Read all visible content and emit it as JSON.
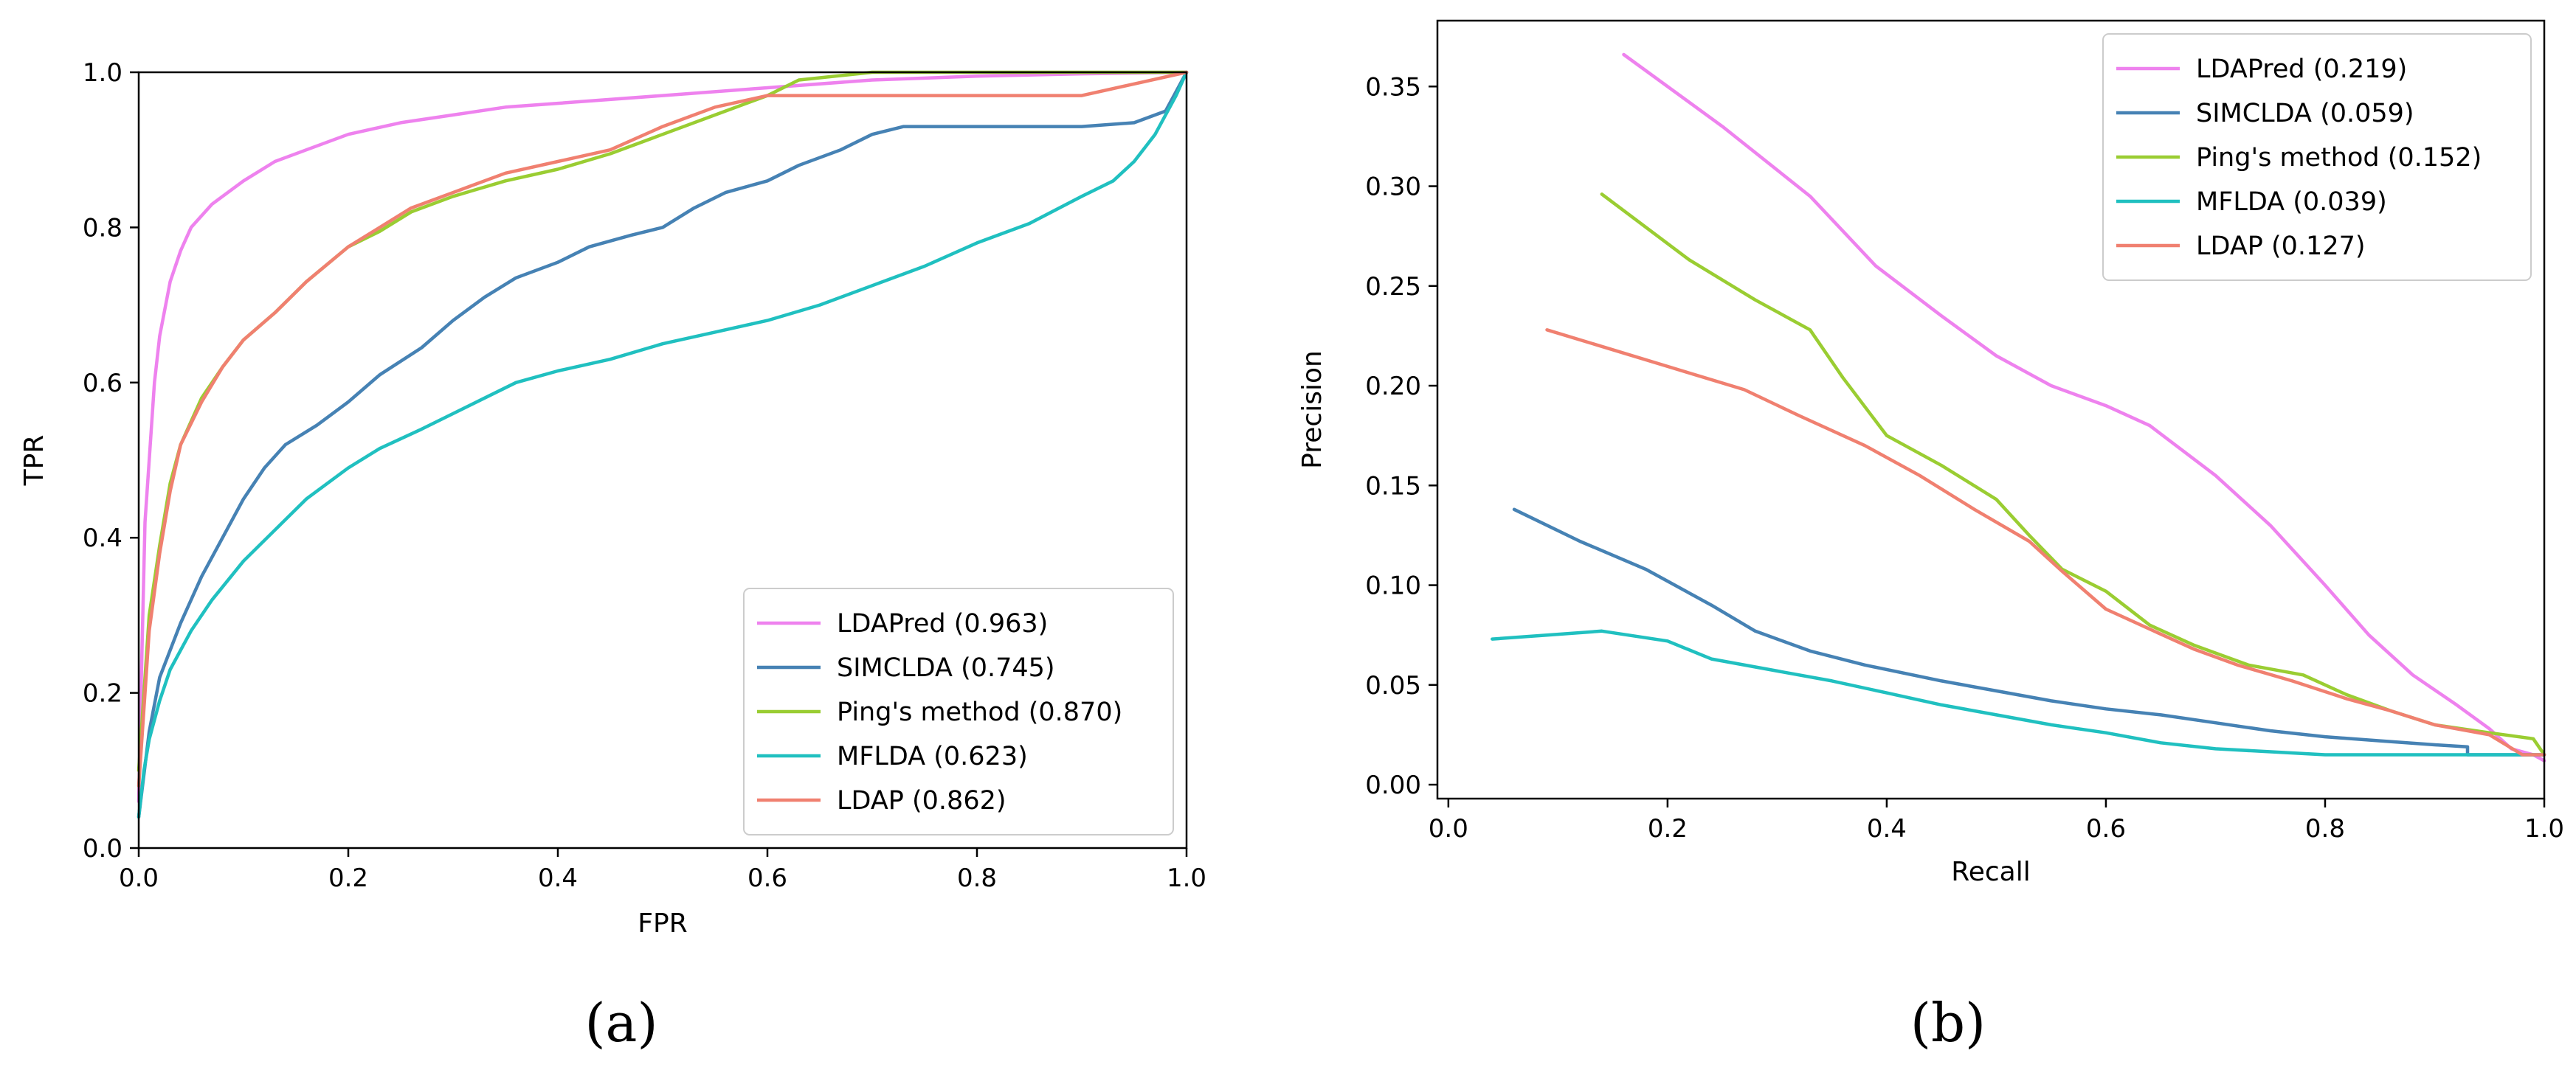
{
  "chart_data": [
    {
      "type": "line",
      "panel_label": "(a)",
      "xlabel": "FPR",
      "ylabel": "TPR",
      "xlim": [
        0,
        1.0
      ],
      "ylim": [
        0,
        1.0
      ],
      "x_ticks": [
        "0.0",
        "0.2",
        "0.4",
        "0.6",
        "0.8",
        "1.0"
      ],
      "y_ticks": [
        "0.0",
        "0.2",
        "0.4",
        "0.6",
        "0.8",
        "1.0"
      ],
      "grid": false,
      "legend_position": "lower-right",
      "series": [
        {
          "name": "LDAPred (0.963)",
          "color": "#ee82ee",
          "points": [
            [
              0,
              0.06
            ],
            [
              0.003,
              0.25
            ],
            [
              0.006,
              0.42
            ],
            [
              0.01,
              0.5
            ],
            [
              0.015,
              0.6
            ],
            [
              0.02,
              0.66
            ],
            [
              0.03,
              0.73
            ],
            [
              0.04,
              0.77
            ],
            [
              0.05,
              0.8
            ],
            [
              0.07,
              0.83
            ],
            [
              0.1,
              0.86
            ],
            [
              0.13,
              0.885
            ],
            [
              0.16,
              0.9
            ],
            [
              0.2,
              0.92
            ],
            [
              0.25,
              0.935
            ],
            [
              0.3,
              0.945
            ],
            [
              0.35,
              0.955
            ],
            [
              0.4,
              0.96
            ],
            [
              0.5,
              0.97
            ],
            [
              0.6,
              0.98
            ],
            [
              0.7,
              0.99
            ],
            [
              0.8,
              0.995
            ],
            [
              0.9,
              0.998
            ],
            [
              1.0,
              1.0
            ]
          ]
        },
        {
          "name": "SIMCLDA (0.745)",
          "color": "#4682b4",
          "points": [
            [
              0,
              0.04
            ],
            [
              0.01,
              0.15
            ],
            [
              0.02,
              0.22
            ],
            [
              0.04,
              0.29
            ],
            [
              0.06,
              0.35
            ],
            [
              0.08,
              0.4
            ],
            [
              0.1,
              0.45
            ],
            [
              0.12,
              0.49
            ],
            [
              0.14,
              0.52
            ],
            [
              0.17,
              0.545
            ],
            [
              0.2,
              0.575
            ],
            [
              0.23,
              0.61
            ],
            [
              0.27,
              0.645
            ],
            [
              0.3,
              0.68
            ],
            [
              0.33,
              0.71
            ],
            [
              0.36,
              0.735
            ],
            [
              0.4,
              0.755
            ],
            [
              0.43,
              0.775
            ],
            [
              0.47,
              0.79
            ],
            [
              0.5,
              0.8
            ],
            [
              0.53,
              0.825
            ],
            [
              0.56,
              0.845
            ],
            [
              0.6,
              0.86
            ],
            [
              0.63,
              0.88
            ],
            [
              0.67,
              0.9
            ],
            [
              0.7,
              0.92
            ],
            [
              0.73,
              0.93
            ],
            [
              0.8,
              0.93
            ],
            [
              0.9,
              0.93
            ],
            [
              0.95,
              0.935
            ],
            [
              0.98,
              0.95
            ],
            [
              1.0,
              1.0
            ]
          ]
        },
        {
          "name": "Ping's method (0.870)",
          "color": "#9acd32",
          "points": [
            [
              0,
              0.1
            ],
            [
              0.01,
              0.3
            ],
            [
              0.02,
              0.39
            ],
            [
              0.03,
              0.47
            ],
            [
              0.04,
              0.52
            ],
            [
              0.06,
              0.58
            ],
            [
              0.08,
              0.62
            ],
            [
              0.1,
              0.655
            ],
            [
              0.13,
              0.69
            ],
            [
              0.16,
              0.73
            ],
            [
              0.2,
              0.775
            ],
            [
              0.23,
              0.795
            ],
            [
              0.26,
              0.82
            ],
            [
              0.3,
              0.84
            ],
            [
              0.35,
              0.86
            ],
            [
              0.4,
              0.875
            ],
            [
              0.45,
              0.895
            ],
            [
              0.5,
              0.92
            ],
            [
              0.55,
              0.945
            ],
            [
              0.6,
              0.97
            ],
            [
              0.63,
              0.99
            ],
            [
              0.7,
              1.0
            ],
            [
              1.0,
              1.0
            ]
          ]
        },
        {
          "name": "MFLDA (0.623)",
          "color": "#20c0c0",
          "points": [
            [
              0,
              0.04
            ],
            [
              0.005,
              0.1
            ],
            [
              0.01,
              0.14
            ],
            [
              0.02,
              0.19
            ],
            [
              0.03,
              0.23
            ],
            [
              0.05,
              0.28
            ],
            [
              0.07,
              0.32
            ],
            [
              0.1,
              0.37
            ],
            [
              0.13,
              0.41
            ],
            [
              0.16,
              0.45
            ],
            [
              0.2,
              0.49
            ],
            [
              0.23,
              0.515
            ],
            [
              0.27,
              0.54
            ],
            [
              0.3,
              0.56
            ],
            [
              0.33,
              0.58
            ],
            [
              0.36,
              0.6
            ],
            [
              0.4,
              0.615
            ],
            [
              0.45,
              0.63
            ],
            [
              0.5,
              0.65
            ],
            [
              0.55,
              0.665
            ],
            [
              0.6,
              0.68
            ],
            [
              0.65,
              0.7
            ],
            [
              0.7,
              0.725
            ],
            [
              0.75,
              0.75
            ],
            [
              0.8,
              0.78
            ],
            [
              0.85,
              0.805
            ],
            [
              0.9,
              0.84
            ],
            [
              0.93,
              0.86
            ],
            [
              0.95,
              0.885
            ],
            [
              0.97,
              0.92
            ],
            [
              0.99,
              0.97
            ],
            [
              1.0,
              1.0
            ]
          ]
        },
        {
          "name": "LDAP (0.862)",
          "color": "#f08070",
          "points": [
            [
              0,
              0.08
            ],
            [
              0.01,
              0.28
            ],
            [
              0.02,
              0.38
            ],
            [
              0.03,
              0.46
            ],
            [
              0.04,
              0.52
            ],
            [
              0.06,
              0.575
            ],
            [
              0.08,
              0.62
            ],
            [
              0.1,
              0.655
            ],
            [
              0.13,
              0.69
            ],
            [
              0.16,
              0.73
            ],
            [
              0.2,
              0.775
            ],
            [
              0.23,
              0.8
            ],
            [
              0.26,
              0.825
            ],
            [
              0.3,
              0.845
            ],
            [
              0.35,
              0.87
            ],
            [
              0.4,
              0.885
            ],
            [
              0.45,
              0.9
            ],
            [
              0.5,
              0.93
            ],
            [
              0.55,
              0.955
            ],
            [
              0.6,
              0.97
            ],
            [
              0.7,
              0.97
            ],
            [
              0.8,
              0.97
            ],
            [
              0.9,
              0.97
            ],
            [
              0.95,
              0.985
            ],
            [
              1.0,
              1.0
            ]
          ]
        }
      ]
    },
    {
      "type": "line",
      "panel_label": "(b)",
      "xlabel": "Recall",
      "ylabel": "Precision",
      "xlim": [
        -0.01,
        1.0
      ],
      "ylim": [
        -0.007,
        0.383
      ],
      "x_ticks": [
        "0.0",
        "0.2",
        "0.4",
        "0.6",
        "0.8",
        "1.0"
      ],
      "y_ticks": [
        "0.00",
        "0.05",
        "0.10",
        "0.15",
        "0.20",
        "0.25",
        "0.30",
        "0.35"
      ],
      "grid": false,
      "legend_position": "upper-right",
      "series": [
        {
          "name": "LDAPred (0.219)",
          "color": "#ee82ee",
          "points": [
            [
              0.16,
              0.366
            ],
            [
              0.25,
              0.33
            ],
            [
              0.33,
              0.295
            ],
            [
              0.39,
              0.26
            ],
            [
              0.45,
              0.235
            ],
            [
              0.5,
              0.215
            ],
            [
              0.55,
              0.2
            ],
            [
              0.6,
              0.19
            ],
            [
              0.64,
              0.18
            ],
            [
              0.7,
              0.155
            ],
            [
              0.75,
              0.13
            ],
            [
              0.8,
              0.1
            ],
            [
              0.84,
              0.075
            ],
            [
              0.88,
              0.055
            ],
            [
              0.92,
              0.04
            ],
            [
              0.95,
              0.028
            ],
            [
              0.97,
              0.018
            ],
            [
              0.99,
              0.015
            ],
            [
              1.0,
              0.012
            ]
          ]
        },
        {
          "name": "SIMCLDA (0.059)",
          "color": "#4682b4",
          "points": [
            [
              0.06,
              0.138
            ],
            [
              0.12,
              0.122
            ],
            [
              0.18,
              0.108
            ],
            [
              0.24,
              0.09
            ],
            [
              0.28,
              0.077
            ],
            [
              0.33,
              0.067
            ],
            [
              0.38,
              0.06
            ],
            [
              0.45,
              0.052
            ],
            [
              0.5,
              0.047
            ],
            [
              0.55,
              0.042
            ],
            [
              0.6,
              0.038
            ],
            [
              0.65,
              0.035
            ],
            [
              0.7,
              0.031
            ],
            [
              0.75,
              0.027
            ],
            [
              0.8,
              0.024
            ],
            [
              0.85,
              0.022
            ],
            [
              0.9,
              0.02
            ],
            [
              0.93,
              0.019
            ],
            [
              0.93,
              0.015
            ],
            [
              1.0,
              0.015
            ]
          ]
        },
        {
          "name": "Ping's method (0.152)",
          "color": "#9acd32",
          "points": [
            [
              0.14,
              0.296
            ],
            [
              0.22,
              0.263
            ],
            [
              0.28,
              0.243
            ],
            [
              0.33,
              0.228
            ],
            [
              0.36,
              0.204
            ],
            [
              0.4,
              0.175
            ],
            [
              0.45,
              0.16
            ],
            [
              0.5,
              0.143
            ],
            [
              0.53,
              0.125
            ],
            [
              0.56,
              0.108
            ],
            [
              0.6,
              0.097
            ],
            [
              0.64,
              0.08
            ],
            [
              0.68,
              0.07
            ],
            [
              0.73,
              0.06
            ],
            [
              0.78,
              0.055
            ],
            [
              0.82,
              0.045
            ],
            [
              0.86,
              0.037
            ],
            [
              0.9,
              0.03
            ],
            [
              0.95,
              0.026
            ],
            [
              0.99,
              0.023
            ],
            [
              1.0,
              0.015
            ]
          ]
        },
        {
          "name": "MFLDA (0.039)",
          "color": "#20c0c0",
          "points": [
            [
              0.04,
              0.073
            ],
            [
              0.09,
              0.075
            ],
            [
              0.14,
              0.077
            ],
            [
              0.2,
              0.072
            ],
            [
              0.24,
              0.063
            ],
            [
              0.3,
              0.057
            ],
            [
              0.35,
              0.052
            ],
            [
              0.4,
              0.046
            ],
            [
              0.45,
              0.04
            ],
            [
              0.5,
              0.035
            ],
            [
              0.55,
              0.03
            ],
            [
              0.6,
              0.026
            ],
            [
              0.65,
              0.021
            ],
            [
              0.7,
              0.018
            ],
            [
              0.8,
              0.015
            ],
            [
              0.9,
              0.015
            ],
            [
              1.0,
              0.015
            ]
          ]
        },
        {
          "name": "LDAP (0.127)",
          "color": "#f08070",
          "points": [
            [
              0.09,
              0.228
            ],
            [
              0.15,
              0.218
            ],
            [
              0.21,
              0.208
            ],
            [
              0.27,
              0.198
            ],
            [
              0.32,
              0.185
            ],
            [
              0.38,
              0.17
            ],
            [
              0.43,
              0.155
            ],
            [
              0.48,
              0.138
            ],
            [
              0.53,
              0.122
            ],
            [
              0.56,
              0.107
            ],
            [
              0.6,
              0.088
            ],
            [
              0.64,
              0.078
            ],
            [
              0.68,
              0.068
            ],
            [
              0.72,
              0.06
            ],
            [
              0.77,
              0.052
            ],
            [
              0.82,
              0.043
            ],
            [
              0.86,
              0.037
            ],
            [
              0.9,
              0.03
            ],
            [
              0.95,
              0.025
            ],
            [
              0.98,
              0.015
            ],
            [
              1.0,
              0.015
            ]
          ]
        }
      ]
    }
  ]
}
